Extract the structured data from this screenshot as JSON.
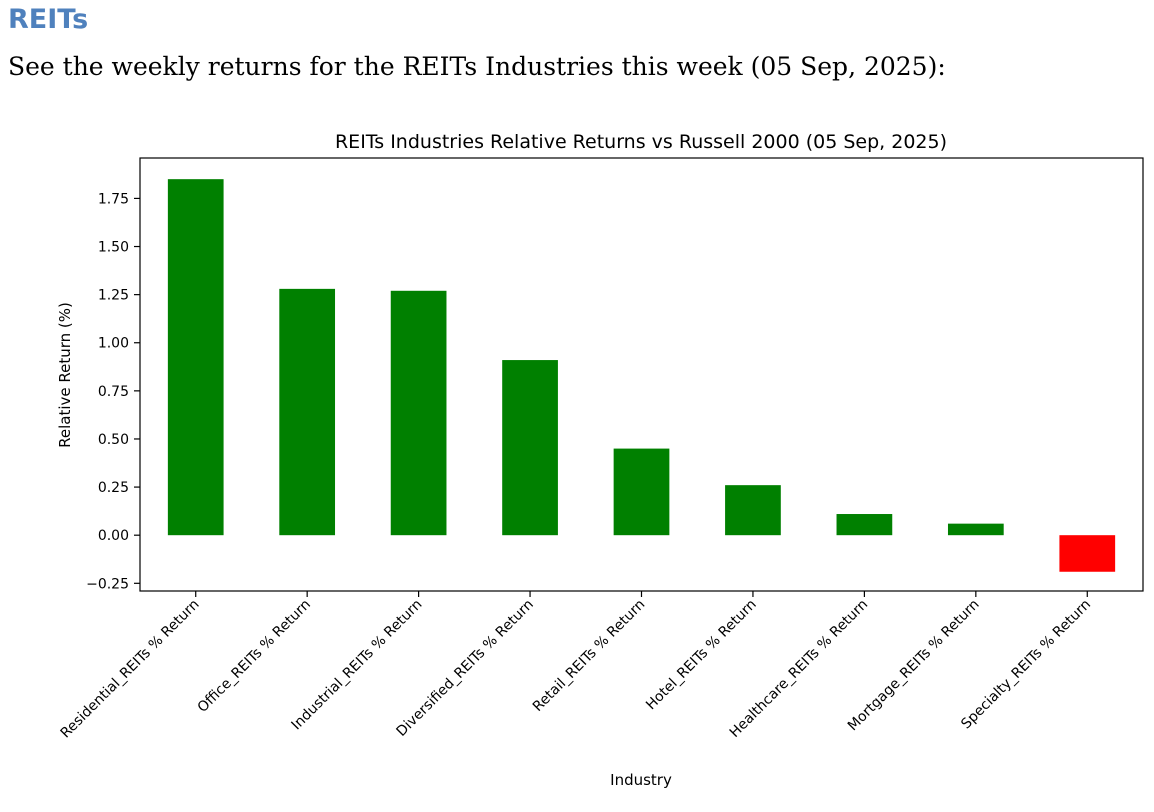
{
  "page": {
    "heading": "REITs",
    "subheading": "See the weekly returns for the REITs Industries this week (05 Sep, 2025):"
  },
  "chart_data": {
    "type": "bar",
    "title": "REITs Industries Relative Returns vs Russell 2000 (05 Sep, 2025)",
    "xlabel": "Industry",
    "ylabel": "Relative Return (%)",
    "categories": [
      "Residential_REITs % Return",
      "Office_REITs % Return",
      "Industrial_REITs % Return",
      "Diversified_REITs % Return",
      "Retail_REITs % Return",
      "Hotel_REITs % Return",
      "Healthcare_REITs % Return",
      "Mortgage_REITs % Return",
      "Specialty_REITs % Return"
    ],
    "values": [
      1.85,
      1.28,
      1.27,
      0.91,
      0.45,
      0.26,
      0.11,
      0.06,
      -0.19
    ],
    "ylim": [
      -0.29,
      1.96
    ],
    "yticks": [
      -0.25,
      0.0,
      0.25,
      0.5,
      0.75,
      1.0,
      1.25,
      1.5,
      1.75
    ],
    "ytick_labels": [
      "−0.25",
      "0.00",
      "0.25",
      "0.50",
      "0.75",
      "1.00",
      "1.25",
      "1.50",
      "1.75"
    ],
    "colors": {
      "positive": "#008000",
      "negative": "#ff0000"
    },
    "grid": false,
    "legend": "none"
  }
}
